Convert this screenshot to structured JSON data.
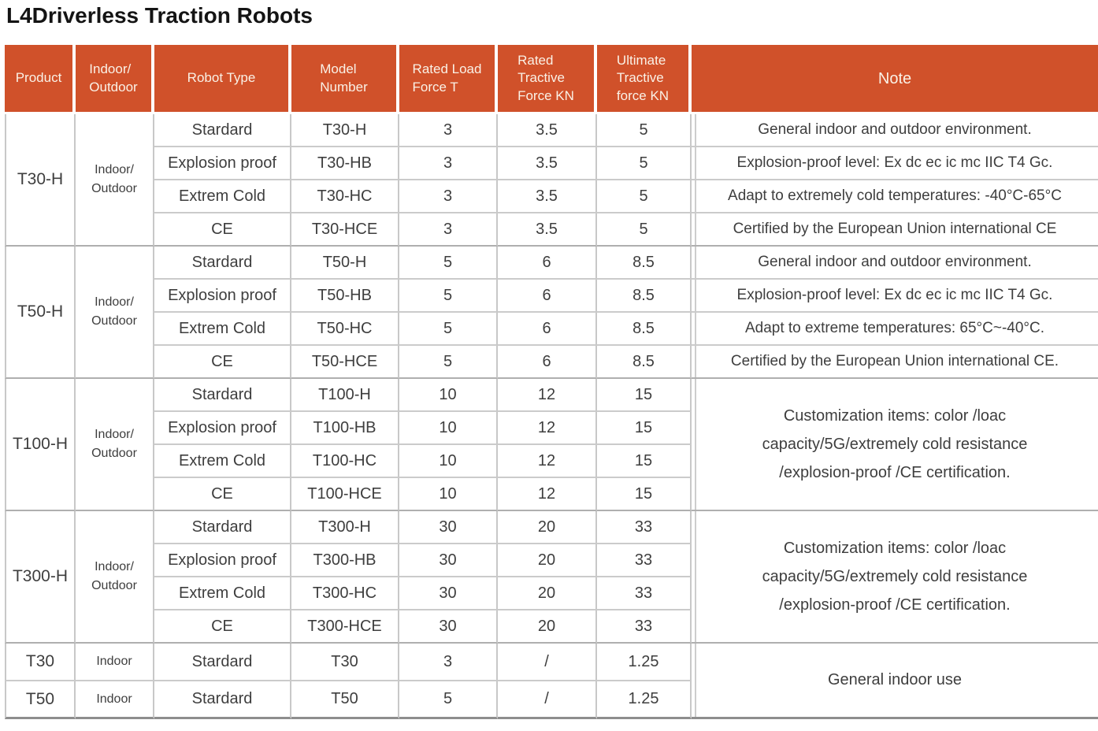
{
  "page": {
    "title": "L4Driverless Traction Robots"
  },
  "colors": {
    "header_bg": "#D0512A",
    "header_text": "#FAF1E6",
    "body_text": "#3E3E3E",
    "grid_line": "#C8C8C8"
  },
  "table": {
    "headers": [
      "Product",
      "Indoor/\nOutdoor",
      "Robot Type",
      "Model\nNumber",
      "Rated Load\nForce T",
      "Rated\nTractive\nForce KN",
      "Ultimate\nTractive\nforce KN",
      "Note"
    ],
    "sections": [
      {
        "product": "T30-H",
        "environment": "Indoor/\nOutdoor",
        "rows": [
          {
            "type": "Stardard",
            "model": "T30-H",
            "load": "3",
            "tractive": "3.5",
            "ultimate": "5",
            "note": "General indoor and outdoor environment."
          },
          {
            "type": "Explosion proof",
            "model": "T30-HB",
            "load": "3",
            "tractive": "3.5",
            "ultimate": "5",
            "note": "Explosion-proof level: Ex dc ec ic mc IIC T4 Gc."
          },
          {
            "type": "Extrem Cold",
            "model": "T30-HC",
            "load": "3",
            "tractive": "3.5",
            "ultimate": "5",
            "note": "Adapt to extremely cold temperatures: -40°C-65°C"
          },
          {
            "type": "CE",
            "model": "T30-HCE",
            "load": "3",
            "tractive": "3.5",
            "ultimate": "5",
            "note": "Certified by the European Union international CE"
          }
        ]
      },
      {
        "product": "T50-H",
        "environment": "Indoor/\nOutdoor",
        "rows": [
          {
            "type": "Stardard",
            "model": "T50-H",
            "load": "5",
            "tractive": "6",
            "ultimate": "8.5",
            "note": "General indoor and outdoor environment."
          },
          {
            "type": "Explosion proof",
            "model": "T50-HB",
            "load": "5",
            "tractive": "6",
            "ultimate": "8.5",
            "note": "Explosion-proof level: Ex dc ec ic mc IIC T4 Gc."
          },
          {
            "type": "Extrem Cold",
            "model": "T50-HC",
            "load": "5",
            "tractive": "6",
            "ultimate": "8.5",
            "note": "Adapt to extreme temperatures: 65°C~-40°C."
          },
          {
            "type": "CE",
            "model": "T50-HCE",
            "load": "5",
            "tractive": "6",
            "ultimate": "8.5",
            "note": "Certified by the European Union international CE."
          }
        ]
      },
      {
        "product": "T100-H",
        "environment": "Indoor/\nOutdoor",
        "note": "Customization items: color /loac capacity/5G/extremely cold resistance /explosion-proof /CE certification.",
        "rows": [
          {
            "type": "Stardard",
            "model": "T100-H",
            "load": "10",
            "tractive": "12",
            "ultimate": "15"
          },
          {
            "type": "Explosion proof",
            "model": "T100-HB",
            "load": "10",
            "tractive": "12",
            "ultimate": "15"
          },
          {
            "type": "Extrem Cold",
            "model": "T100-HC",
            "load": "10",
            "tractive": "12",
            "ultimate": "15"
          },
          {
            "type": "CE",
            "model": "T100-HCE",
            "load": "10",
            "tractive": "12",
            "ultimate": "15"
          }
        ]
      },
      {
        "product": "T300-H",
        "environment": "Indoor/\nOutdoor",
        "note": "Customization items: color /loac capacity/5G/extremely cold resistance /explosion-proof /CE certification.",
        "rows": [
          {
            "type": "Stardard",
            "model": "T300-H",
            "load": "30",
            "tractive": "20",
            "ultimate": "33"
          },
          {
            "type": "Explosion proof",
            "model": "T300-HB",
            "load": "30",
            "tractive": "20",
            "ultimate": "33"
          },
          {
            "type": "Extrem Cold",
            "model": "T300-HC",
            "load": "30",
            "tractive": "20",
            "ultimate": "33"
          },
          {
            "type": "CE",
            "model": "T300-HCE",
            "load": "30",
            "tractive": "20",
            "ultimate": "33"
          }
        ]
      },
      {
        "note": "General indoor use",
        "rows": [
          {
            "product": "T30",
            "environment": "Indoor",
            "type": "Stardard",
            "model": "T30",
            "load": "3",
            "tractive": "/",
            "ultimate": "1.25"
          },
          {
            "product": "T50",
            "environment": "Indoor",
            "type": "Stardard",
            "model": "T50",
            "load": "5",
            "tractive": "/",
            "ultimate": "1.25"
          }
        ]
      }
    ]
  }
}
